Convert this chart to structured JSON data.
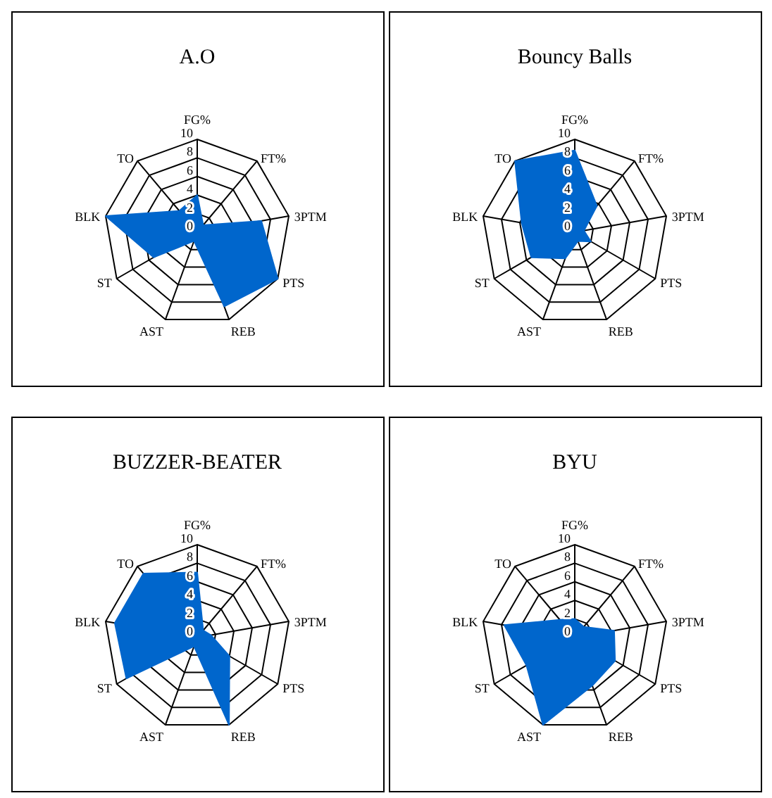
{
  "chart_data": [
    {
      "type": "radar",
      "title": "A.O",
      "categories": [
        "FG%",
        "FT%",
        "3PTM",
        "PTS",
        "REB",
        "AST",
        "ST",
        "BLK",
        "TO"
      ],
      "ylim": [
        0,
        10
      ],
      "yticks": [
        0,
        2,
        4,
        6,
        8,
        10
      ],
      "grid": true,
      "series": [
        {
          "color": "#0066cc",
          "values": [
            4,
            1,
            7,
            10,
            8.5,
            1,
            5.4,
            10,
            3
          ]
        }
      ]
    },
    {
      "type": "radar",
      "title": "Bouncy Balls",
      "categories": [
        "FG%",
        "FT%",
        "3PTM",
        "PTS",
        "REB",
        "AST",
        "ST",
        "BLK",
        "TO"
      ],
      "ylim": [
        0,
        10
      ],
      "yticks": [
        0,
        2,
        4,
        6,
        8,
        10
      ],
      "grid": true,
      "series": [
        {
          "color": "#0066cc",
          "values": [
            8.8,
            3.7,
            1,
            2,
            1,
            3,
            5.4,
            5.8,
            10
          ]
        }
      ]
    },
    {
      "type": "radar",
      "title": "BUZZER-BEATER",
      "categories": [
        "FG%",
        "FT%",
        "3PTM",
        "PTS",
        "REB",
        "AST",
        "ST",
        "BLK",
        "TO"
      ],
      "ylim": [
        0,
        10
      ],
      "yticks": [
        0,
        2,
        4,
        6,
        8,
        10
      ],
      "grid": true,
      "series": [
        {
          "color": "#0066cc",
          "values": [
            7,
            1,
            1.5,
            4,
            10,
            1,
            8.8,
            9,
            9
          ]
        }
      ]
    },
    {
      "type": "radar",
      "title": "BYU",
      "categories": [
        "FG%",
        "FT%",
        "3PTM",
        "PTS",
        "REB",
        "AST",
        "ST",
        "BLK",
        "TO"
      ],
      "ylim": [
        0,
        10
      ],
      "yticks": [
        0,
        2,
        4,
        6,
        8,
        10
      ],
      "grid": true,
      "series": [
        {
          "color": "#0066cc",
          "values": [
            2,
            1.5,
            4.3,
            5,
            5.5,
            10,
            6,
            7.7,
            2.5
          ]
        }
      ]
    }
  ]
}
